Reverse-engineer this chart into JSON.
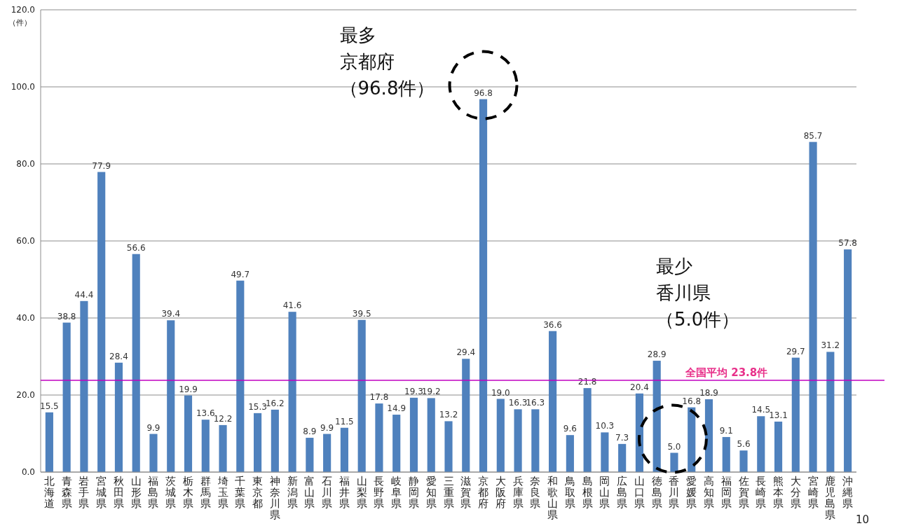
{
  "chart_data": {
    "type": "bar",
    "ylabel": "（件）",
    "categories": [
      "北海道",
      "青森県",
      "岩手県",
      "宮城県",
      "秋田県",
      "山形県",
      "福島県",
      "茨城県",
      "栃木県",
      "群馬県",
      "埼玉県",
      "千葉県",
      "東京都",
      "神奈川県",
      "新潟県",
      "富山県",
      "石川県",
      "福井県",
      "山梨県",
      "長野県",
      "岐阜県",
      "静岡県",
      "愛知県",
      "三重県",
      "滋賀県",
      "京都府",
      "大阪府",
      "兵庫県",
      "奈良県",
      "和歌山県",
      "鳥取県",
      "島根県",
      "岡山県",
      "広島県",
      "山口県",
      "徳島県",
      "香川県",
      "愛媛県",
      "高知県",
      "福岡県",
      "佐賀県",
      "長崎県",
      "熊本県",
      "大分県",
      "宮崎県",
      "鹿児島県",
      "沖縄県"
    ],
    "values": [
      15.5,
      38.8,
      44.4,
      77.9,
      28.4,
      56.6,
      9.9,
      39.4,
      19.9,
      13.6,
      12.2,
      49.7,
      15.3,
      16.2,
      41.6,
      8.9,
      9.9,
      11.5,
      39.5,
      17.8,
      14.9,
      19.3,
      19.2,
      13.2,
      29.4,
      96.8,
      19.0,
      16.3,
      16.3,
      36.6,
      9.6,
      21.8,
      10.3,
      7.3,
      20.4,
      28.9,
      5.0,
      16.8,
      18.9,
      9.1,
      5.6,
      14.5,
      13.1,
      29.7,
      85.7,
      31.2,
      57.8
    ],
    "value_labels": [
      "15.5",
      "38.8",
      "44.4",
      "77.9",
      "28.4",
      "56.6",
      "9.9",
      "39.4",
      "19.9",
      "13.6",
      "12.2",
      "49.7",
      "15.3",
      "16.2",
      "41.6",
      "8.9",
      "9.9",
      "11.5",
      "39.5",
      "17.8",
      "14.9",
      "19.3",
      "19.2",
      "13.2",
      "29.4",
      "96.8",
      "19.0",
      "16.3",
      "16.3",
      "36.6",
      "9.6",
      "21.8",
      "10.3",
      "7.3",
      "20.4",
      "28.9",
      "5.0",
      "16.8",
      "18.9",
      "9.1",
      "5.6",
      "14.5",
      "13.1",
      "29.7",
      "85.7",
      "31.2",
      "57.8"
    ],
    "color": "#4f81bd",
    "ylim": [
      0,
      120
    ],
    "yticks": [
      {
        "value": 0,
        "label": "0.0"
      },
      {
        "value": 20,
        "label": "20.0"
      },
      {
        "value": 40,
        "label": "40.0"
      },
      {
        "value": 60,
        "label": "60.0"
      },
      {
        "value": 80,
        "label": "80.0"
      },
      {
        "value": 100,
        "label": "100.0"
      },
      {
        "value": 120,
        "label": "120.0"
      }
    ],
    "grid": "y",
    "ref_lines": [
      {
        "axis": "y",
        "value": 23.8,
        "label": "全国平均 23.8件",
        "color": "#c000c0"
      }
    ],
    "annotations": [
      "最多京都府（96.8件）",
      "最少香川県（5.0件）",
      "10"
    ]
  }
}
